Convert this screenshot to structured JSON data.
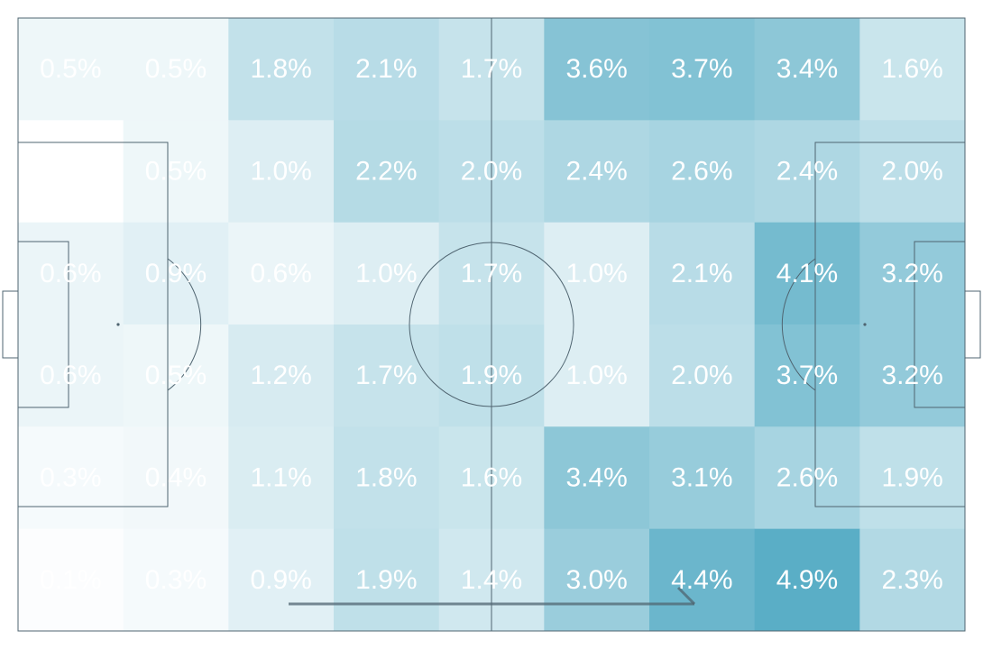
{
  "chart_data": {
    "type": "heatmap",
    "title": "",
    "colormap": {
      "low": "#ffffff",
      "high": "#5aaec6"
    },
    "line_color": "#4f6470",
    "label_color": "#ffffff",
    "has_attack_arrow": true,
    "grid": {
      "columns": 9,
      "rows": 6
    },
    "values": [
      [
        0.5,
        0.5,
        1.8,
        2.1,
        1.7,
        3.6,
        3.7,
        3.4,
        1.6
      ],
      [
        0.0,
        0.5,
        1.0,
        2.2,
        2.0,
        2.4,
        2.6,
        2.4,
        2.0
      ],
      [
        0.6,
        0.9,
        0.6,
        1.0,
        1.7,
        1.0,
        2.1,
        4.1,
        3.2
      ],
      [
        0.6,
        0.5,
        1.2,
        1.7,
        1.9,
        1.0,
        2.0,
        3.7,
        3.2
      ],
      [
        0.3,
        0.4,
        1.1,
        1.8,
        1.6,
        3.4,
        3.1,
        2.6,
        1.9
      ],
      [
        0.1,
        0.3,
        0.9,
        1.9,
        1.4,
        3.0,
        4.4,
        4.9,
        2.3
      ]
    ],
    "labels": [
      [
        "0.5%",
        "0.5%",
        "1.8%",
        "2.1%",
        "1.7%",
        "3.6%",
        "3.7%",
        "3.4%",
        "1.6%"
      ],
      [
        "",
        "0.5%",
        "1.0%",
        "2.2%",
        "2.0%",
        "2.4%",
        "2.6%",
        "2.4%",
        "2.0%"
      ],
      [
        "0.6%",
        "0.9%",
        "0.6%",
        "1.0%",
        "1.7%",
        "1.0%",
        "2.1%",
        "4.1%",
        "3.2%"
      ],
      [
        "0.6%",
        "0.5%",
        "1.2%",
        "1.7%",
        "1.9%",
        "1.0%",
        "2.0%",
        "3.7%",
        "3.2%"
      ],
      [
        "0.3%",
        "0.4%",
        "1.1%",
        "1.8%",
        "1.6%",
        "3.4%",
        "3.1%",
        "2.6%",
        "1.9%"
      ],
      [
        "0.1%",
        "0.3%",
        "0.9%",
        "1.9%",
        "1.4%",
        "3.0%",
        "4.4%",
        "4.9%",
        "2.3%"
      ]
    ]
  }
}
